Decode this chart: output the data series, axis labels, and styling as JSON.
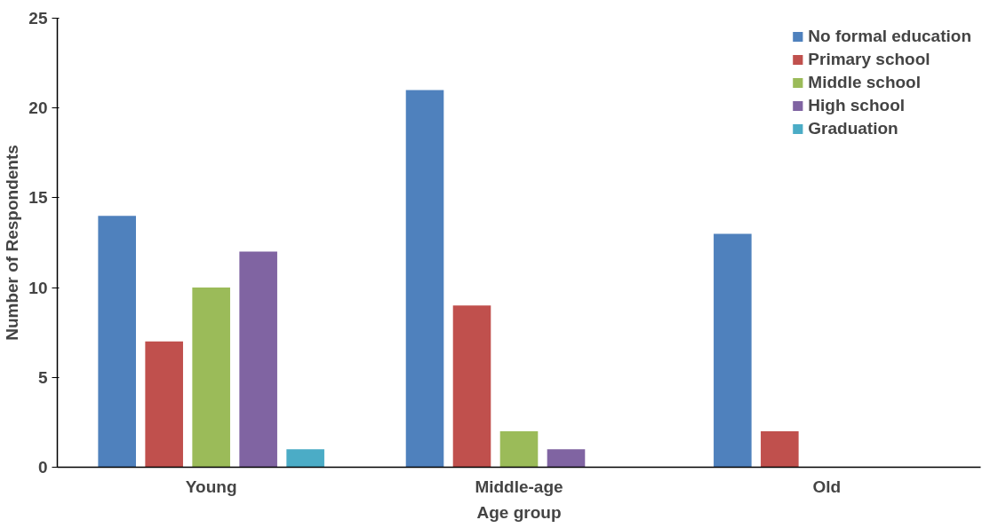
{
  "chart_data": {
    "type": "bar",
    "xlabel": "Age group",
    "ylabel": "Number of Respondents",
    "categories": [
      "Young",
      "Middle-age",
      "Old"
    ],
    "series": [
      {
        "name": "No formal education",
        "color": "#4f81bd",
        "values": [
          14,
          21,
          13
        ]
      },
      {
        "name": "Primary school",
        "color": "#c0504d",
        "values": [
          7,
          9,
          2
        ]
      },
      {
        "name": "Middle school",
        "color": "#9bbb59",
        "values": [
          10,
          2,
          0
        ]
      },
      {
        "name": "High school",
        "color": "#8064a2",
        "values": [
          12,
          1,
          0
        ]
      },
      {
        "name": "Graduation",
        "color": "#4bacc6",
        "values": [
          1,
          0,
          0
        ]
      }
    ],
    "ylim": [
      0,
      25
    ],
    "yticks": [
      0,
      5,
      10,
      15,
      20,
      25
    ],
    "grid": false,
    "legend": "top right"
  }
}
